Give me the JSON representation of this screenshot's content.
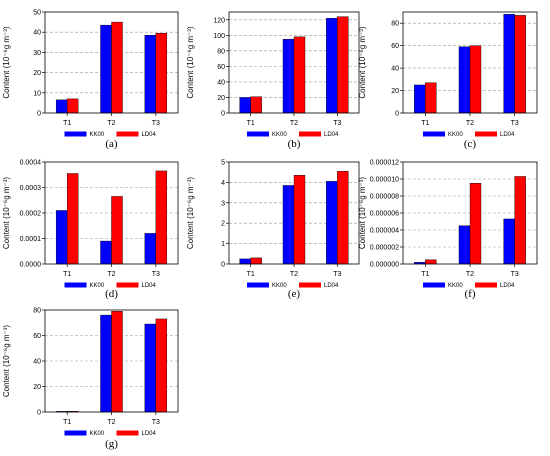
{
  "figure": {
    "ylabel": "Content (10⁻⁶g m⁻³)",
    "series_names": [
      "KK00",
      "LD04"
    ],
    "colors": {
      "KK00": "#0000ff",
      "LD04": "#ff0000",
      "grid": "#9a9a9a"
    }
  },
  "chart_data": [
    {
      "type": "bar",
      "label": "(a)",
      "categories": [
        "T1",
        "T2",
        "T3"
      ],
      "series": [
        {
          "name": "KK00",
          "values": [
            6.5,
            43.5,
            38.5
          ]
        },
        {
          "name": "LD04",
          "values": [
            7.0,
            45.0,
            39.5
          ]
        }
      ],
      "ylim": [
        0,
        50
      ],
      "yticks": [
        "0",
        "10",
        "20",
        "30",
        "40",
        "50"
      ],
      "grid": true,
      "legend": "bottom"
    },
    {
      "type": "bar",
      "label": "(b)",
      "categories": [
        "T1",
        "T2",
        "T3"
      ],
      "series": [
        {
          "name": "KK00",
          "values": [
            20,
            95,
            122
          ]
        },
        {
          "name": "LD04",
          "values": [
            21,
            98,
            124
          ]
        }
      ],
      "ylim": [
        0,
        130
      ],
      "yticks": [
        "0",
        "20",
        "40",
        "60",
        "80",
        "100",
        "120"
      ],
      "grid": true,
      "legend": "bottom"
    },
    {
      "type": "bar",
      "label": "(c)",
      "categories": [
        "T1",
        "T2",
        "T3"
      ],
      "series": [
        {
          "name": "KK00",
          "values": [
            25,
            59,
            88
          ]
        },
        {
          "name": "LD04",
          "values": [
            27,
            60,
            87
          ]
        }
      ],
      "ylim": [
        0,
        90
      ],
      "yticks": [
        "0",
        "20",
        "40",
        "60",
        "80"
      ],
      "grid": true,
      "legend": "bottom"
    },
    {
      "type": "bar",
      "label": "(d)",
      "categories": [
        "T1",
        "T2",
        "T3"
      ],
      "series": [
        {
          "name": "KK00",
          "values": [
            0.00021,
            9e-05,
            0.00012
          ]
        },
        {
          "name": "LD04",
          "values": [
            0.000355,
            0.000265,
            0.000365
          ]
        }
      ],
      "ylim": [
        0,
        0.0004
      ],
      "yticks": [
        "0.0000",
        "0.0001",
        "0.0002",
        "0.0003",
        "0.0004"
      ],
      "grid": true,
      "legend": "bottom"
    },
    {
      "type": "bar",
      "label": "(e)",
      "categories": [
        "T1",
        "T2",
        "T3"
      ],
      "series": [
        {
          "name": "KK00",
          "values": [
            0.25,
            3.85,
            4.05
          ]
        },
        {
          "name": "LD04",
          "values": [
            0.3,
            4.35,
            4.55
          ]
        }
      ],
      "ylim": [
        0,
        5
      ],
      "yticks": [
        "0",
        "1",
        "2",
        "3",
        "4",
        "5"
      ],
      "grid": true,
      "legend": "bottom"
    },
    {
      "type": "bar",
      "label": "(f)",
      "categories": [
        "T1",
        "T2",
        "T3"
      ],
      "series": [
        {
          "name": "KK00",
          "values": [
            2e-07,
            4.5e-06,
            5.3e-06
          ]
        },
        {
          "name": "LD04",
          "values": [
            5e-07,
            9.5e-06,
            1.03e-05
          ]
        }
      ],
      "ylim": [
        0,
        1.2e-05
      ],
      "yticks": [
        "0.000000",
        "0.000002",
        "0.000004",
        "0.000006",
        "0.000008",
        "0.000010",
        "0.000012"
      ],
      "grid": true,
      "legend": "bottom"
    },
    {
      "type": "bar",
      "label": "(g)",
      "categories": [
        "T1",
        "T2",
        "T3"
      ],
      "series": [
        {
          "name": "KK00",
          "values": [
            0.5,
            76,
            69
          ]
        },
        {
          "name": "LD04",
          "values": [
            0.6,
            79,
            73
          ]
        }
      ],
      "ylim": [
        0,
        80
      ],
      "yticks": [
        "0",
        "20",
        "40",
        "60",
        "80"
      ],
      "grid": true,
      "legend": "bottom"
    }
  ]
}
